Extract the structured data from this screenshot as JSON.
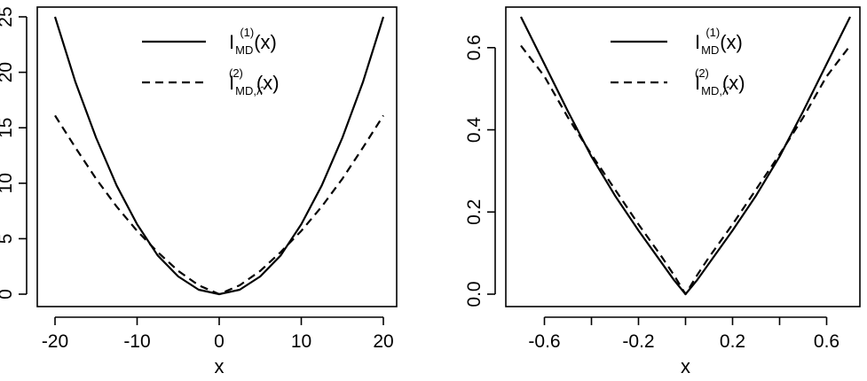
{
  "chart_data": [
    {
      "type": "line",
      "title": "",
      "xlabel": "x",
      "ylabel": "",
      "xlim": [
        -20,
        20
      ],
      "ylim": [
        0,
        25
      ],
      "xticks": [
        "-20",
        "-10",
        "0",
        "10",
        "20"
      ],
      "yticks": [
        "0",
        "5",
        "10",
        "15",
        "20",
        "25"
      ],
      "grid": false,
      "legend_position": "top-center",
      "legend": [
        {
          "base": "I",
          "sub": "MD",
          "sup": "(1)",
          "arg": "(x)",
          "style": "solid"
        },
        {
          "base": "I",
          "sub": "MD,λ̂",
          "sup": "(2)",
          "arg": "(x)",
          "style": "dashed"
        }
      ],
      "series": [
        {
          "style": "solid",
          "x": [
            -20,
            -17.5,
            -15,
            -12.5,
            -10,
            -7.5,
            -5,
            -2.5,
            0,
            2.5,
            5,
            7.5,
            10,
            12.5,
            15,
            17.5,
            20
          ],
          "y": [
            25.0,
            19.1,
            14.1,
            9.8,
            6.3,
            3.5,
            1.6,
            0.4,
            0.0,
            0.4,
            1.6,
            3.5,
            6.3,
            9.8,
            14.1,
            19.1,
            25.0
          ]
        },
        {
          "style": "dashed",
          "x": [
            -20,
            -17.5,
            -15,
            -12.5,
            -10,
            -7.5,
            -5,
            -2.5,
            0,
            2.5,
            5,
            7.5,
            10,
            12.5,
            15,
            17.5,
            20
          ],
          "y": [
            16.1,
            13.2,
            10.4,
            7.9,
            5.7,
            3.8,
            2.1,
            0.8,
            0.0,
            0.8,
            2.1,
            3.8,
            5.7,
            7.9,
            10.4,
            13.2,
            16.1
          ]
        }
      ]
    },
    {
      "type": "line",
      "title": "",
      "xlabel": "x",
      "ylabel": "",
      "xlim": [
        -0.7,
        0.7
      ],
      "ylim": [
        0,
        0.675
      ],
      "xticks": [
        "-0.6",
        "-0.2",
        "0.2",
        "0.6"
      ],
      "xtick_values": [
        -0.6,
        -0.2,
        0.2,
        0.6
      ],
      "xtick_minor": [
        -0.4,
        0.0,
        0.4
      ],
      "yticks": [
        "0.0",
        "0.2",
        "0.4",
        "0.6"
      ],
      "grid": false,
      "legend_position": "top-center",
      "legend": [
        {
          "base": "I",
          "sub": "MD",
          "sup": "(1)",
          "arg": "(x)",
          "style": "solid"
        },
        {
          "base": "I",
          "sub": "MD,λ̂",
          "sup": "(2)",
          "arg": "(x)",
          "style": "dashed"
        }
      ],
      "series": [
        {
          "style": "solid",
          "x": [
            -0.7,
            -0.6,
            -0.5,
            -0.4,
            -0.3,
            -0.2,
            -0.1,
            -0.05,
            0,
            0.05,
            0.1,
            0.2,
            0.3,
            0.4,
            0.5,
            0.6,
            0.7
          ],
          "y": [
            0.675,
            0.56,
            0.445,
            0.335,
            0.24,
            0.155,
            0.075,
            0.035,
            0.0,
            0.035,
            0.075,
            0.155,
            0.24,
            0.335,
            0.445,
            0.56,
            0.675
          ]
        },
        {
          "style": "dashed",
          "x": [
            -0.7,
            -0.6,
            -0.5,
            -0.4,
            -0.3,
            -0.2,
            -0.1,
            -0.05,
            0,
            0.05,
            0.1,
            0.2,
            0.3,
            0.4,
            0.5,
            0.6,
            0.7
          ],
          "y": [
            0.605,
            0.53,
            0.43,
            0.34,
            0.255,
            0.17,
            0.09,
            0.047,
            0.0,
            0.047,
            0.09,
            0.17,
            0.255,
            0.34,
            0.43,
            0.53,
            0.605
          ]
        }
      ]
    }
  ]
}
